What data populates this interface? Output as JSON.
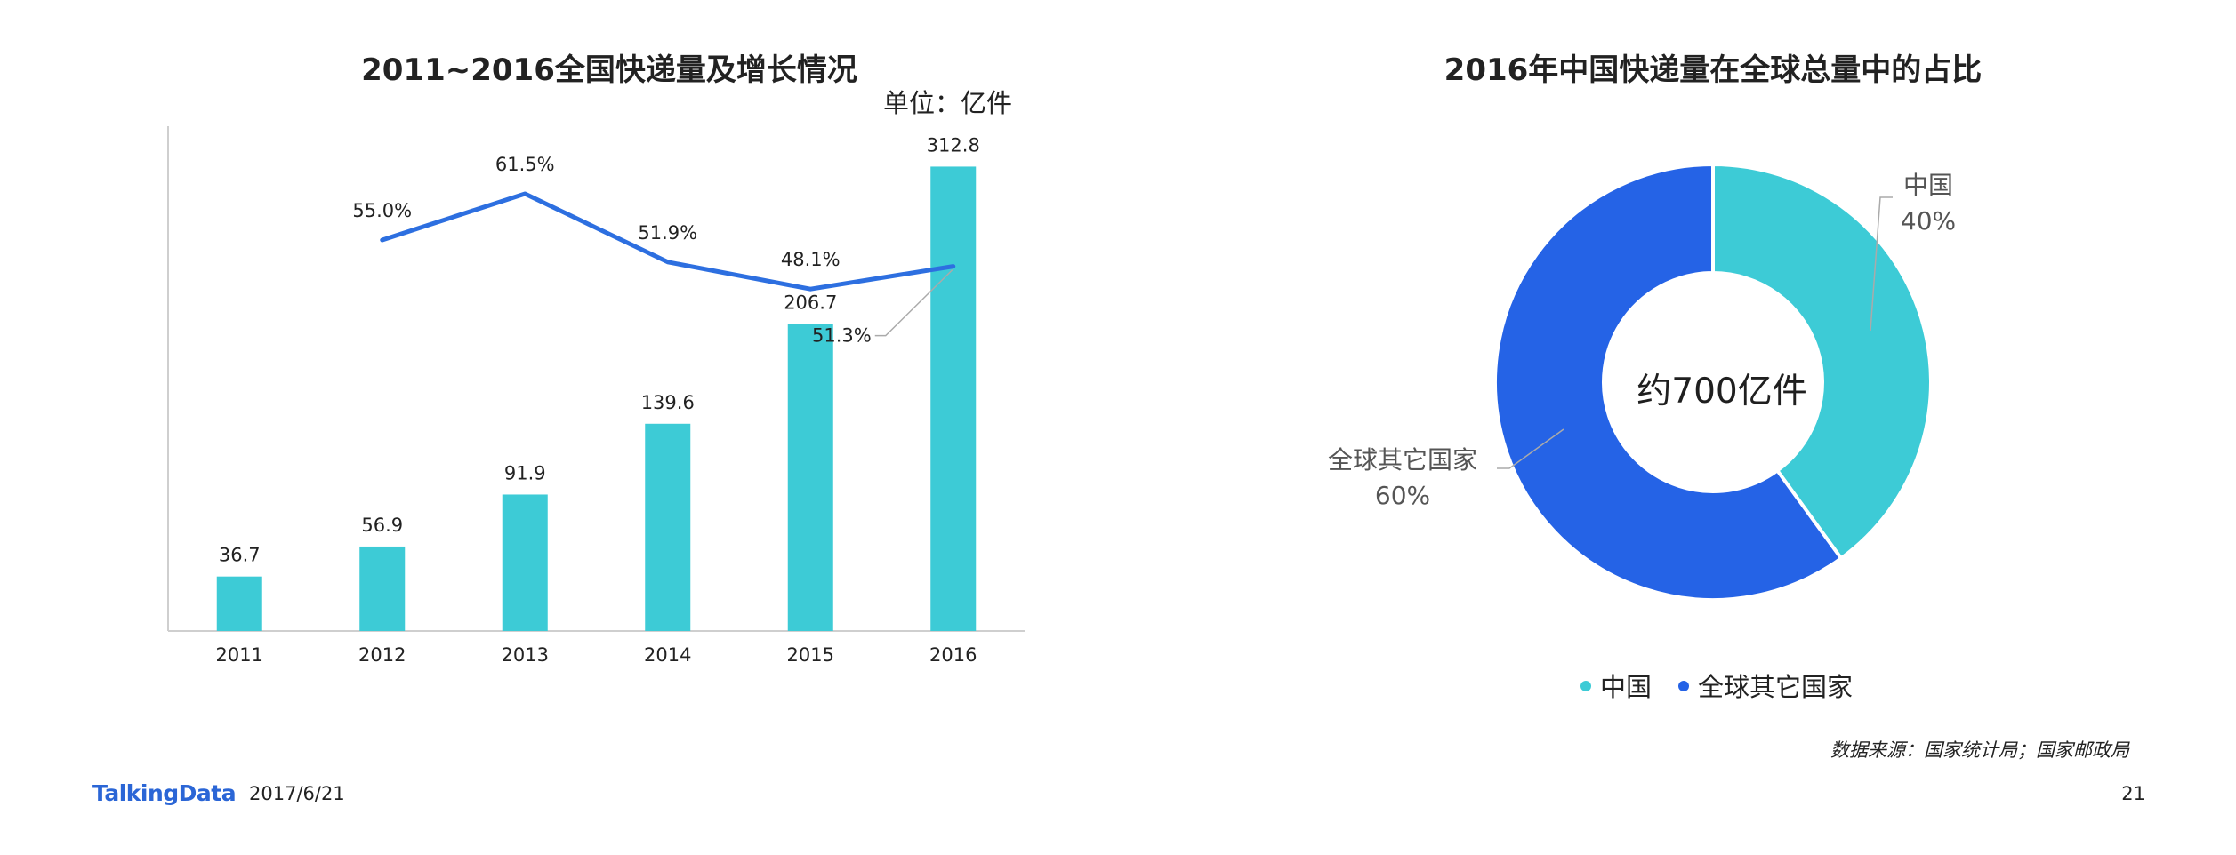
{
  "chart_data": [
    {
      "type": "bar+line",
      "title": "2011~2016全国快递量及增长情况",
      "unit_label": "单位：亿件",
      "categories": [
        "2011",
        "2012",
        "2013",
        "2014",
        "2015",
        "2016"
      ],
      "series": [
        {
          "type": "bar",
          "values": [
            36.7,
            56.9,
            91.9,
            139.6,
            206.7,
            312.8
          ],
          "labels": [
            "36.7",
            "56.9",
            "91.9",
            "139.6",
            "206.7",
            "312.8"
          ],
          "color": "#3dcbd6"
        },
        {
          "type": "line",
          "x": [
            "2012",
            "2013",
            "2014",
            "2015",
            "2016"
          ],
          "values": [
            55.0,
            61.5,
            51.9,
            48.1,
            51.3
          ],
          "labels": [
            "55.0%",
            "61.5%",
            "51.9%",
            "48.1%",
            "51.3%"
          ],
          "color": "#2d6fe0"
        }
      ],
      "ylim": [
        0,
        340
      ],
      "grid": false
    },
    {
      "type": "pie",
      "style": "donut",
      "title": "2016年中国快递量在全球总量中的占比",
      "center_label": "约700亿件",
      "slices": [
        {
          "label": "中国",
          "value": 40,
          "value_label": "40%",
          "color": "#3dcbd6"
        },
        {
          "label": "全球其它国家",
          "value": 60,
          "value_label": "60%",
          "color": "#2563e6"
        }
      ],
      "legend": [
        "中国",
        "全球其它国家"
      ],
      "legend_position": "bottom"
    }
  ],
  "footer": {
    "logo": "TalkingData",
    "date": "2017/6/21",
    "source": "数据来源：国家统计局；国家邮政局",
    "page_number": "21"
  }
}
